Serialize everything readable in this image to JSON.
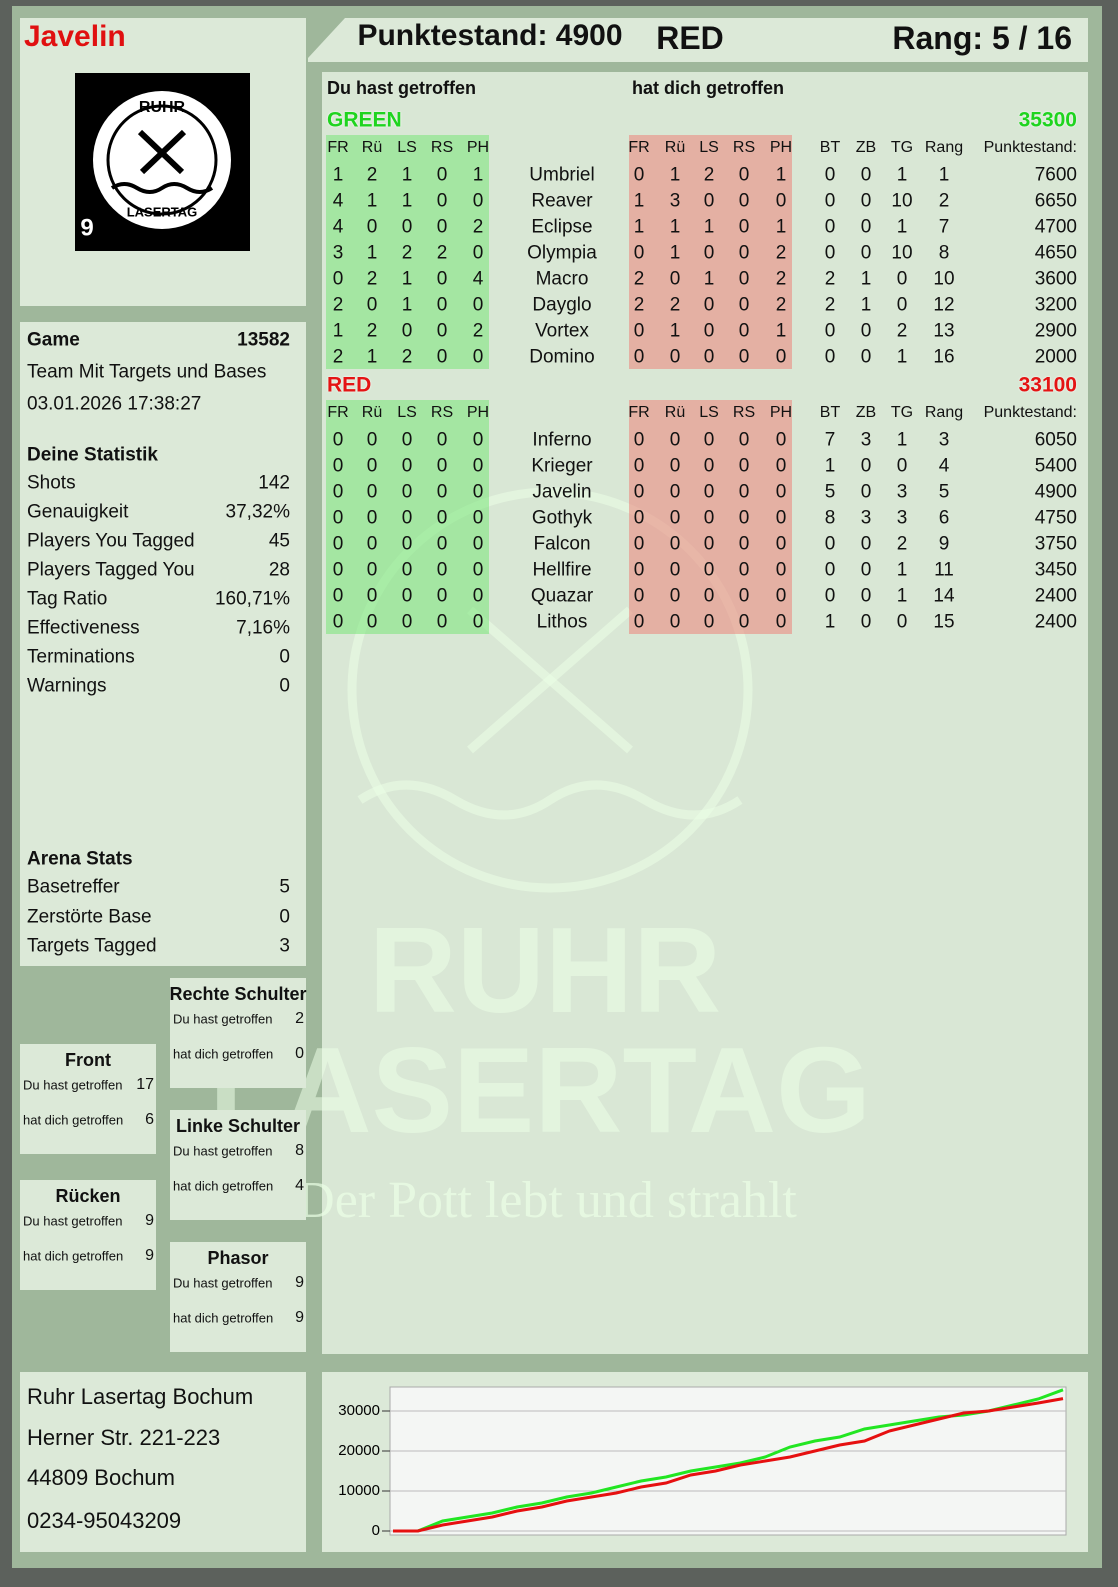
{
  "header": {
    "player": "Javelin",
    "score": "Punktestand: 4900",
    "team": "RED",
    "rank": "Rang: 5 / 16"
  },
  "logo": {
    "top": "RUHR",
    "bottom": "LASERTAG",
    "number": "9"
  },
  "scoreboard": {
    "hit_you": "Du hast getroffen",
    "hit_by": "hat dich getroffen",
    "hit_columns": [
      "FR",
      "Rü",
      "LS",
      "RS",
      "PH"
    ],
    "stat_columns": [
      "BT",
      "ZB",
      "TG",
      "Rang",
      "Punktestand:"
    ],
    "teams": [
      {
        "name": "GREEN",
        "color": "#1fd41f",
        "total": "35300",
        "rows": [
          {
            "name": "Umbriel",
            "hit": [
              1,
              2,
              1,
              0,
              1
            ],
            "hit_by": [
              0,
              1,
              2,
              0,
              1
            ],
            "stats": [
              0,
              0,
              1,
              1,
              7600
            ]
          },
          {
            "name": "Reaver",
            "hit": [
              4,
              1,
              1,
              0,
              0
            ],
            "hit_by": [
              1,
              3,
              0,
              0,
              0
            ],
            "stats": [
              0,
              0,
              10,
              2,
              6650
            ]
          },
          {
            "name": "Eclipse",
            "hit": [
              4,
              0,
              0,
              0,
              2
            ],
            "hit_by": [
              1,
              1,
              1,
              0,
              1
            ],
            "stats": [
              0,
              0,
              1,
              7,
              4700
            ]
          },
          {
            "name": "Olympia",
            "hit": [
              3,
              1,
              2,
              2,
              0
            ],
            "hit_by": [
              0,
              1,
              0,
              0,
              2
            ],
            "stats": [
              0,
              0,
              10,
              8,
              4650
            ]
          },
          {
            "name": "Macro",
            "hit": [
              0,
              2,
              1,
              0,
              4
            ],
            "hit_by": [
              2,
              0,
              1,
              0,
              2
            ],
            "stats": [
              2,
              1,
              0,
              10,
              3600
            ]
          },
          {
            "name": "Dayglo",
            "hit": [
              2,
              0,
              1,
              0,
              0
            ],
            "hit_by": [
              2,
              2,
              0,
              0,
              2
            ],
            "stats": [
              2,
              1,
              0,
              12,
              3200
            ]
          },
          {
            "name": "Vortex",
            "hit": [
              1,
              2,
              0,
              0,
              2
            ],
            "hit_by": [
              0,
              1,
              0,
              0,
              1
            ],
            "stats": [
              0,
              0,
              2,
              13,
              2900
            ]
          },
          {
            "name": "Domino",
            "hit": [
              2,
              1,
              2,
              0,
              0
            ],
            "hit_by": [
              0,
              0,
              0,
              0,
              0
            ],
            "stats": [
              0,
              0,
              1,
              16,
              2000
            ]
          }
        ]
      },
      {
        "name": "RED",
        "color": "#e41414",
        "total": "33100",
        "rows": [
          {
            "name": "Inferno",
            "hit": [
              0,
              0,
              0,
              0,
              0
            ],
            "hit_by": [
              0,
              0,
              0,
              0,
              0
            ],
            "stats": [
              7,
              3,
              1,
              3,
              6050
            ]
          },
          {
            "name": "Krieger",
            "hit": [
              0,
              0,
              0,
              0,
              0
            ],
            "hit_by": [
              0,
              0,
              0,
              0,
              0
            ],
            "stats": [
              1,
              0,
              0,
              4,
              5400
            ]
          },
          {
            "name": "Javelin",
            "hit": [
              0,
              0,
              0,
              0,
              0
            ],
            "hit_by": [
              0,
              0,
              0,
              0,
              0
            ],
            "stats": [
              5,
              0,
              3,
              5,
              4900
            ]
          },
          {
            "name": "Gothyk",
            "hit": [
              0,
              0,
              0,
              0,
              0
            ],
            "hit_by": [
              0,
              0,
              0,
              0,
              0
            ],
            "stats": [
              8,
              3,
              3,
              6,
              4750
            ]
          },
          {
            "name": "Falcon",
            "hit": [
              0,
              0,
              0,
              0,
              0
            ],
            "hit_by": [
              0,
              0,
              0,
              0,
              0
            ],
            "stats": [
              0,
              0,
              2,
              9,
              3750
            ]
          },
          {
            "name": "Hellfire",
            "hit": [
              0,
              0,
              0,
              0,
              0
            ],
            "hit_by": [
              0,
              0,
              0,
              0,
              0
            ],
            "stats": [
              0,
              0,
              1,
              11,
              3450
            ]
          },
          {
            "name": "Quazar",
            "hit": [
              0,
              0,
              0,
              0,
              0
            ],
            "hit_by": [
              0,
              0,
              0,
              0,
              0
            ],
            "stats": [
              0,
              0,
              1,
              14,
              2400
            ]
          },
          {
            "name": "Lithos",
            "hit": [
              0,
              0,
              0,
              0,
              0
            ],
            "hit_by": [
              0,
              0,
              0,
              0,
              0
            ],
            "stats": [
              1,
              0,
              0,
              15,
              2400
            ]
          }
        ]
      }
    ]
  },
  "info": {
    "game_label": "Game",
    "game_id": "13582",
    "mode": "Team Mit Targets und Bases",
    "date": "03.01.2026 17:38:27"
  },
  "stats": {
    "title": "Deine Statistik",
    "items": [
      {
        "label": "Shots",
        "value": "142"
      },
      {
        "label": "Genauigkeit",
        "value": "37,32%"
      },
      {
        "label": "Players You Tagged",
        "value": "45"
      },
      {
        "label": "Players Tagged You",
        "value": "28"
      },
      {
        "label": "Tag Ratio",
        "value": "160,71%"
      },
      {
        "label": "Effectiveness",
        "value": "7,16%"
      },
      {
        "label": "Terminations",
        "value": "0"
      },
      {
        "label": "Warnings",
        "value": "0"
      }
    ]
  },
  "arena": {
    "title": "Arena Stats",
    "items": [
      {
        "label": "Basetreffer",
        "value": "5"
      },
      {
        "label": "Zerstörte Base",
        "value": "0"
      },
      {
        "label": "Targets Tagged",
        "value": "3"
      }
    ]
  },
  "zones": {
    "hit_label": "Du hast getroffen",
    "hit_by_label": "hat dich getroffen",
    "items": [
      {
        "title": "Rechte Schulter",
        "hit": 2,
        "hit_by": 0
      },
      {
        "title": "Front",
        "hit": 17,
        "hit_by": 6
      },
      {
        "title": "Linke Schulter",
        "hit": 8,
        "hit_by": 4
      },
      {
        "title": "Rücken",
        "hit": 9,
        "hit_by": 9
      },
      {
        "title": "Phasor",
        "hit": 9,
        "hit_by": 9
      }
    ]
  },
  "address": [
    "Ruhr Lasertag Bochum",
    "Herner Str. 221-223",
    "44809 Bochum",
    "0234-95043209"
  ],
  "watermark": [
    "RUHR",
    "LASERTAG",
    "Der Pott lebt und strahlt"
  ],
  "chart_data": {
    "type": "line",
    "ylim": [
      0,
      36000
    ],
    "yticks": [
      0,
      10000,
      20000,
      30000
    ],
    "grid": true,
    "series": [
      {
        "color": "#22e622",
        "values": [
          0,
          0,
          2500,
          3500,
          4500,
          6000,
          7000,
          8500,
          9500,
          11000,
          12500,
          13500,
          15000,
          16000,
          17000,
          18500,
          21000,
          22500,
          23500,
          25500,
          26500,
          27500,
          28500,
          29000,
          30000,
          31500,
          33000,
          35300
        ]
      },
      {
        "color": "#e61010",
        "values": [
          0,
          0,
          1500,
          2500,
          3500,
          5000,
          6000,
          7500,
          8500,
          9500,
          11000,
          12000,
          14000,
          15000,
          16500,
          17500,
          18500,
          20000,
          21500,
          22500,
          25000,
          26500,
          28000,
          29500,
          30000,
          31000,
          32000,
          33100
        ]
      }
    ]
  }
}
